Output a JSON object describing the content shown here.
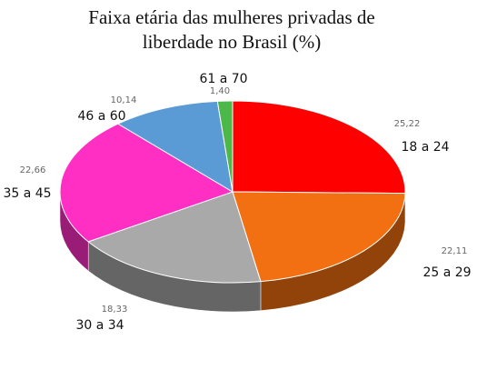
{
  "chart_data": {
    "type": "pie3d",
    "title": "Faixa etária das mulheres privadas de liberdade no Brasil (%)",
    "categories": [
      "18 a 24",
      "25 a 29",
      "30 a 34",
      "35 a 45",
      "46 a 60",
      "61 a 70"
    ],
    "values": [
      25.22,
      22.11,
      18.33,
      22.66,
      10.14,
      1.4
    ],
    "value_labels": [
      "25,22",
      "22,11",
      "18,33",
      "22,66",
      "10,14",
      "1,40"
    ],
    "colors": [
      "#ff0000",
      "#f27011",
      "#a9a9a9",
      "#ff2fc4",
      "#5b9bd5",
      "#4cb84a"
    ]
  }
}
